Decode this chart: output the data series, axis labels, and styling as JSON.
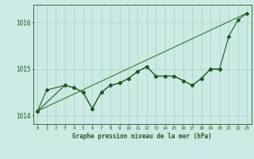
{
  "line1_data": {
    "x": [
      0,
      3,
      4,
      5,
      6,
      7,
      8,
      9,
      10,
      11,
      12,
      13,
      14,
      15,
      16,
      17,
      18,
      19,
      20
    ],
    "y": [
      1014.1,
      1014.65,
      1014.6,
      1014.5,
      1014.15,
      1014.5,
      1014.65,
      1014.7,
      1014.8,
      1014.95,
      1015.05,
      1014.85,
      1014.85,
      1014.85,
      1014.75,
      1014.65,
      1014.8,
      1015.0,
      1015.0
    ]
  },
  "line2_data": {
    "x": [
      0,
      1,
      3,
      4,
      5,
      6,
      7,
      8,
      9,
      10,
      11,
      12,
      13,
      14,
      15,
      16,
      17,
      18,
      19,
      20,
      21,
      22,
      23
    ],
    "y": [
      1014.1,
      1014.55,
      1014.65,
      1014.6,
      1014.5,
      1014.15,
      1014.5,
      1014.65,
      1014.7,
      1014.8,
      1014.95,
      1015.05,
      1014.85,
      1014.85,
      1014.85,
      1014.75,
      1014.65,
      1014.8,
      1015.0,
      1015.0,
      1015.7,
      1016.05,
      1016.2
    ]
  },
  "line3_data": {
    "x": [
      0,
      23
    ],
    "y": [
      1014.1,
      1016.2
    ]
  },
  "background_color": "#cceae4",
  "grid_color": "#aad4cc",
  "line_color_main": "#1e5c1e",
  "line_color_secondary": "#2e7d2e",
  "xlabel": "Graphe pression niveau de la mer (hPa)",
  "yticks": [
    1014,
    1015,
    1016
  ],
  "xticks": [
    0,
    1,
    2,
    3,
    4,
    5,
    6,
    7,
    8,
    9,
    10,
    11,
    12,
    13,
    14,
    15,
    16,
    17,
    18,
    19,
    20,
    21,
    22,
    23
  ],
  "ylim": [
    1013.82,
    1016.38
  ],
  "xlim": [
    -0.5,
    23.5
  ]
}
